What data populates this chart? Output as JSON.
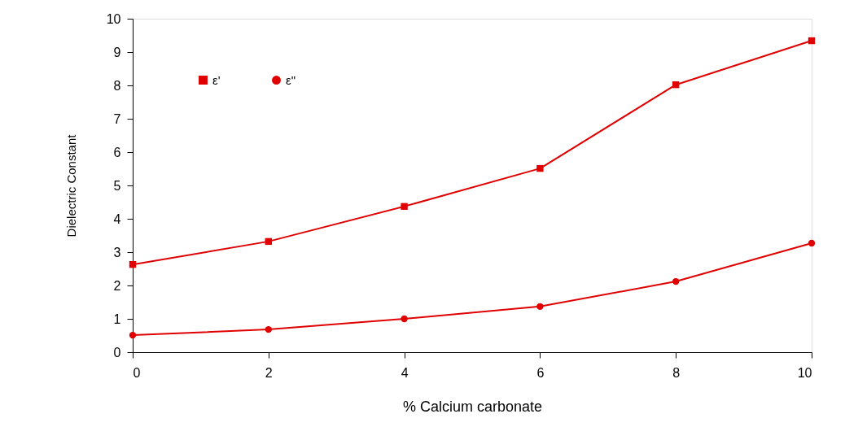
{
  "chart_data": {
    "type": "line",
    "xlabel": "% Calcium carbonate",
    "ylabel": "Dielectric Constant",
    "x": [
      0,
      2,
      4,
      6,
      8,
      10
    ],
    "series": [
      {
        "name": "ε'",
        "color": "#e00000",
        "marker": "square",
        "values": [
          2.63,
          3.32,
          4.37,
          5.51,
          8.02,
          9.34
        ]
      },
      {
        "name": "ε\"",
        "color": "#e00000",
        "marker": "circle",
        "values": [
          0.51,
          0.68,
          1.0,
          1.37,
          2.12,
          3.27
        ]
      }
    ],
    "xlim": [
      0,
      10
    ],
    "xticks": [
      0,
      2,
      4,
      6,
      8,
      10
    ],
    "ylim": [
      0,
      10
    ],
    "yticks": [
      0,
      1,
      2,
      3,
      4,
      5,
      6,
      7,
      8,
      9,
      10
    ],
    "grid": false,
    "legend": "top left",
    "line_style": "solid"
  }
}
